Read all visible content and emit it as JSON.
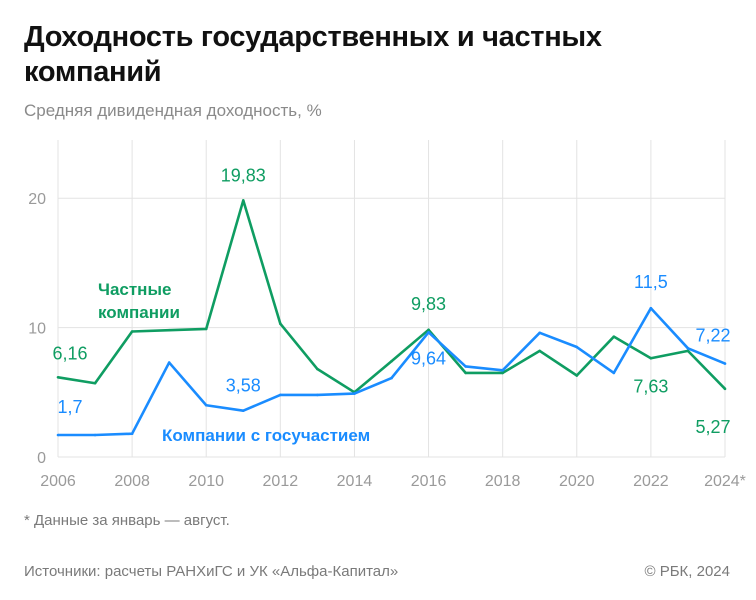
{
  "title": "Доходность государственных и частных компаний",
  "subtitle": "Средняя дивидендная доходность, %",
  "footnote": "* Данные за январь — август.",
  "source": "Источники: расчеты РАНХиГС и УК «Альфа-Капитал»",
  "copyright": "© РБК, 2024",
  "chart_data": {
    "type": "line",
    "x": [
      2006,
      2007,
      2008,
      2009,
      2010,
      2011,
      2012,
      2013,
      2014,
      2015,
      2016,
      2017,
      2018,
      2019,
      2020,
      2021,
      2022,
      2023,
      2024
    ],
    "x_tick_labels": [
      "2006",
      "2008",
      "2010",
      "2012",
      "2014",
      "2016",
      "2018",
      "2020",
      "2022",
      "2024*"
    ],
    "y_ticks": [
      "0",
      "10",
      "20"
    ],
    "ylim": [
      0,
      24.5
    ],
    "grid": true,
    "series": [
      {
        "name": "Частные компании",
        "color": "#0f9d62",
        "values": [
          6.16,
          5.7,
          9.7,
          9.8,
          9.9,
          19.83,
          10.3,
          6.8,
          5.0,
          7.4,
          9.83,
          6.5,
          6.5,
          8.2,
          6.3,
          9.3,
          7.63,
          8.2,
          5.27
        ],
        "data_labels": {
          "2006": "6,16",
          "2011": "19,83",
          "2016": "9,83",
          "2022": "7,63",
          "2024": "5,27"
        }
      },
      {
        "name": "Компании с госучастием",
        "color": "#1a8cff",
        "values": [
          1.7,
          1.7,
          1.8,
          7.3,
          4.0,
          3.58,
          4.8,
          4.8,
          4.9,
          6.1,
          9.64,
          7.0,
          6.7,
          9.6,
          8.5,
          6.5,
          11.5,
          8.4,
          7.22
        ],
        "data_labels": {
          "2006": "1,7",
          "2011": "3,58",
          "2016": "9,64",
          "2022": "11,5",
          "2024": "7,22"
        }
      }
    ]
  }
}
